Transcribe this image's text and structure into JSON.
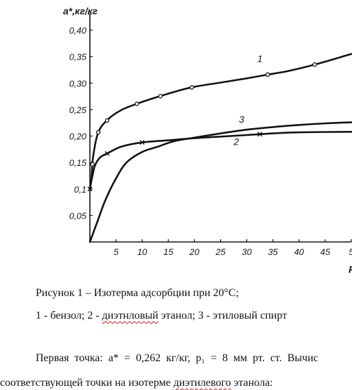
{
  "chart_data": {
    "type": "line",
    "ylabel": "a*,кг/кг",
    "xlabel": "P",
    "xlim": [
      0,
      50
    ],
    "ylim": [
      0,
      0.4
    ],
    "x_ticks": [
      "5",
      "10",
      "15",
      "20",
      "25",
      "30",
      "35",
      "40",
      "45",
      "5"
    ],
    "y_ticks": [
      "0,05",
      "0,1",
      "0,15",
      "0,20",
      "0,25",
      "0,30",
      "0,35",
      "0,40"
    ],
    "series": [
      {
        "name": "1",
        "marker": "circle",
        "x": [
          0,
          0.3,
          0.6,
          1.6,
          3.5,
          6,
          9,
          13,
          19,
          25,
          30,
          34,
          38,
          43,
          50
        ],
        "y": [
          0.1,
          0.12,
          0.16,
          0.207,
          0.232,
          0.249,
          0.261,
          0.274,
          0.291,
          0.301,
          0.309,
          0.316,
          0.323,
          0.335,
          0.355
        ],
        "marked_x": [
          0.5,
          1.6,
          3.3,
          9,
          13.5,
          19.5,
          34,
          43
        ]
      },
      {
        "name": "2",
        "marker": "cross",
        "x": [
          0,
          0.5,
          1,
          2,
          3.5,
          6,
          10,
          15,
          20,
          25,
          30,
          35,
          40,
          50
        ],
        "y": [
          0.1,
          0.125,
          0.145,
          0.16,
          0.168,
          0.18,
          0.188,
          0.192,
          0.196,
          0.199,
          0.202,
          0.205,
          0.207,
          0.208
        ],
        "marked_x": [
          0,
          3.3,
          10,
          32.5
        ]
      },
      {
        "name": "3",
        "marker": "none",
        "x": [
          0,
          1.5,
          3,
          5,
          7,
          10,
          13,
          16,
          20,
          25,
          30,
          35,
          40,
          45,
          50
        ],
        "y": [
          0.0,
          0.04,
          0.08,
          0.12,
          0.15,
          0.17,
          0.18,
          0.19,
          0.197,
          0.205,
          0.212,
          0.217,
          0.221,
          0.224,
          0.226
        ]
      }
    ]
  },
  "caption": {
    "line1": "Рисунок 1 – Изотерма адсорбции при 20°С;",
    "line2_a": "1 - бензол; 2 - ",
    "line2_b": "диэтнловый",
    "line2_c": " этанол; 3 - этиловый спирт"
  },
  "paragraph": {
    "line1": "Первая точка: a* = 0,262 кг/кг, p₁ = 8 мм рт. ст. Вычис",
    "line2_a": "соответствующей точки на изотерме ",
    "line2_b": "диэтилевого",
    "line2_c": " этанола:"
  }
}
